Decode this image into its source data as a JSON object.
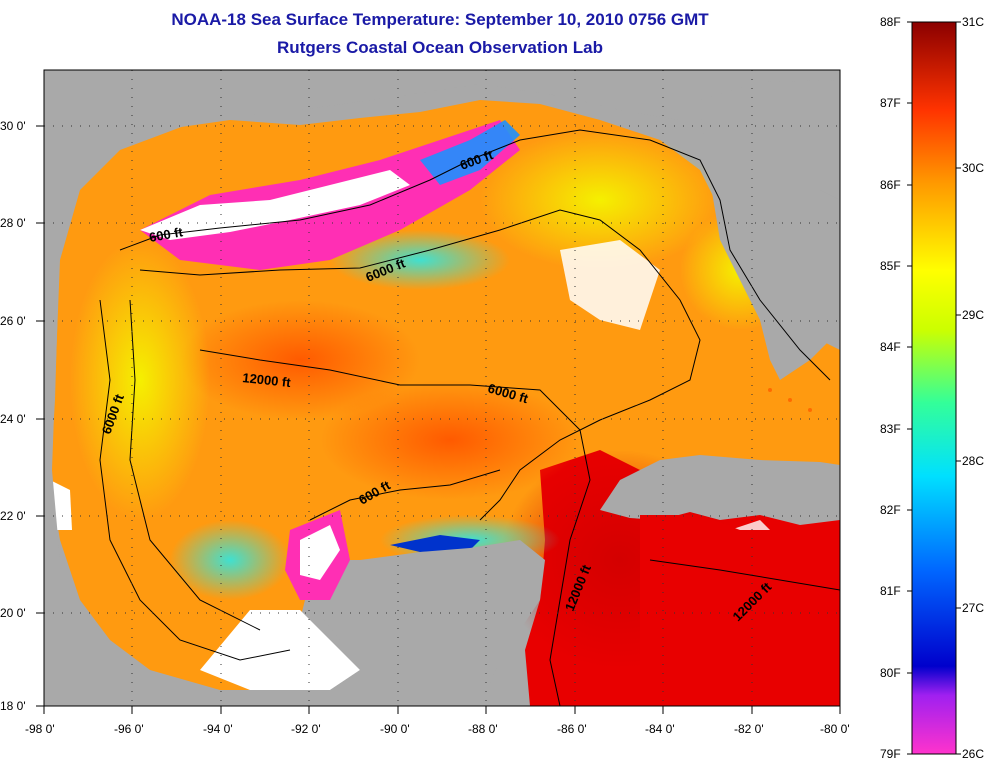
{
  "title": "NOAA-18 Sea Surface Temperature:  September 10, 2010 0756 GMT",
  "subtitle": "Rutgers Coastal Ocean Observation Lab",
  "map": {
    "lon_ticks": [
      "-98 0'",
      "-96 0'",
      "-94 0'",
      "-92 0'",
      "-90 0'",
      "-88 0'",
      "-86 0'",
      "-84 0'",
      "-82 0'",
      "-80 0'"
    ],
    "lat_ticks": [
      "18 0'",
      "20 0'",
      "22 0'",
      "24 0'",
      "26 0'",
      "28 0'",
      "30 0'"
    ],
    "lon_range": [
      -98,
      -80
    ],
    "lat_range": [
      18,
      31.3
    ],
    "contour_labels": [
      "600 ft",
      "600 ft",
      "6000 ft",
      "12000 ft",
      "6000 ft",
      "6000 ft",
      "600 ft",
      "12000 ft",
      "12000 ft"
    ],
    "colors": {
      "land": "#a9a9a9",
      "cloud": "#ffffff",
      "ocean_warm": "#ff6a00",
      "ocean_hot": "#e00000"
    }
  },
  "colorbar": {
    "fahrenheit": [
      "88F",
      "87F",
      "86F",
      "85F",
      "84F",
      "83F",
      "82F",
      "81F",
      "80F",
      "79F"
    ],
    "celsius": [
      "31C",
      "30C",
      "29C",
      "28C",
      "27C",
      "26C"
    ],
    "range_f": [
      79,
      88
    ],
    "range_c": [
      26,
      31
    ]
  }
}
